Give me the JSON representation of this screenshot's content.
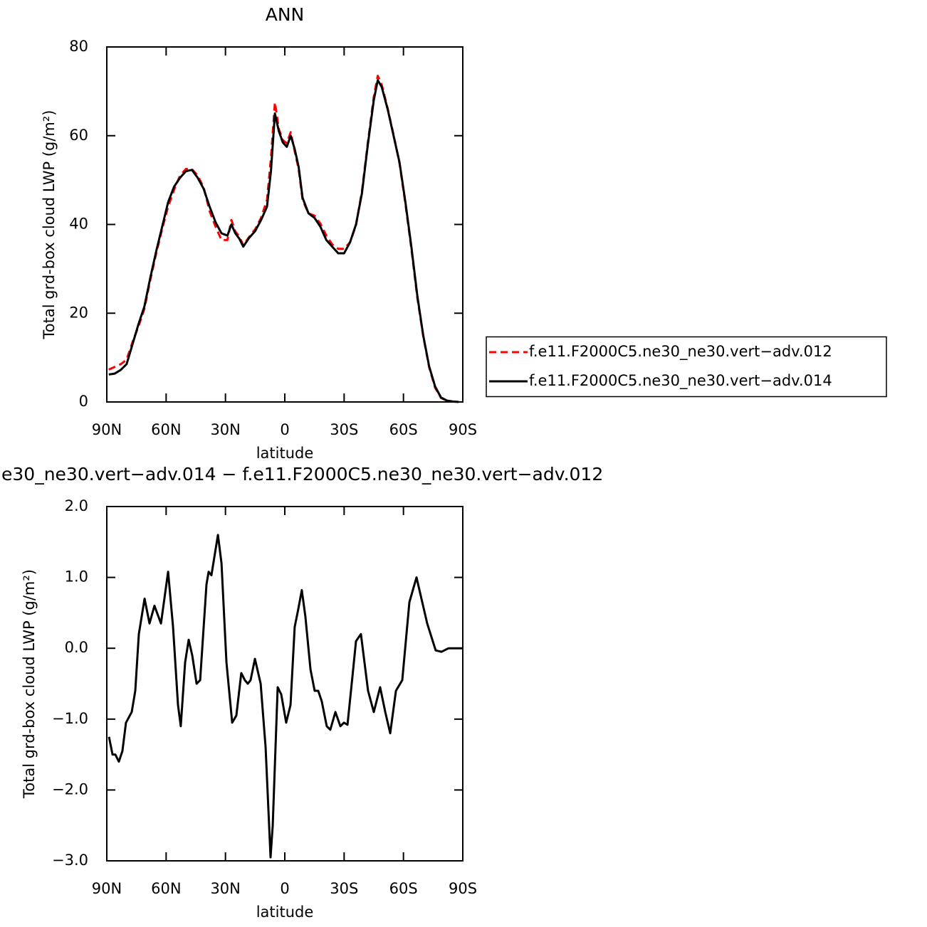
{
  "chart_data": [
    {
      "type": "line",
      "title": "ANN",
      "xlabel": "latitude",
      "ylabel": "Total grd-box cloud LWP (g/m²)",
      "xlim": [
        90,
        -90
      ],
      "ylim": [
        0,
        80
      ],
      "xticks": [
        {
          "value": 90,
          "label": "90N"
        },
        {
          "value": 60,
          "label": "60N"
        },
        {
          "value": 30,
          "label": "30N"
        },
        0,
        {
          "value": -30,
          "label": "30S"
        },
        {
          "value": -60,
          "label": "60S"
        },
        {
          "value": -90,
          "label": "90S"
        }
      ],
      "yticks": [
        0,
        20,
        40,
        60,
        80
      ],
      "legend": "right",
      "x": [
        89,
        86,
        83,
        80,
        77,
        74,
        71,
        68,
        65,
        62,
        59,
        56,
        53,
        50,
        47,
        44,
        41,
        38,
        35,
        32,
        29,
        27,
        25,
        23,
        21,
        18,
        15,
        12,
        9,
        7,
        5,
        3,
        1,
        -1,
        -3,
        -5,
        -7,
        -9,
        -12,
        -15,
        -18,
        -21,
        -24,
        -27,
        -30,
        -33,
        -36,
        -39,
        -42,
        -45,
        -47,
        -49,
        -52,
        -55,
        -58,
        -61,
        -64,
        -67,
        -70,
        -73,
        -76,
        -79,
        -82,
        -85,
        -88
      ],
      "series": [
        {
          "name": "f.e11.F2000C5.ne30_ne30.vert−adv.012",
          "color": "#ff0000",
          "line_style": "dashed",
          "values": [
            7.3,
            7.9,
            8.5,
            9.5,
            13.5,
            17,
            21,
            27.5,
            33.5,
            39,
            44,
            47.8,
            51,
            52.5,
            52.5,
            51,
            48.3,
            43,
            39.5,
            36.5,
            36.5,
            41,
            38.4,
            37.3,
            35.3,
            37.2,
            38.9,
            41.5,
            45.5,
            55,
            67.5,
            61.5,
            59,
            58.3,
            60.8,
            56.5,
            52.5,
            45.5,
            42.5,
            42,
            40.2,
            37.5,
            35.5,
            34.5,
            34.5,
            36,
            39.8,
            47.5,
            58.5,
            68.8,
            73.5,
            71.5,
            66.2,
            60.2,
            53.8,
            44.6,
            34.5,
            23.5,
            14.8,
            7.8,
            3.2,
            0.9,
            0.3,
            0.1,
            0
          ]
        },
        {
          "name": "f.e11.F2000C5.ne30_ne30.vert−adv.014",
          "color": "#000000",
          "line_style": "solid",
          "values": [
            6.2,
            6.4,
            7.2,
            8.5,
            13,
            17.5,
            21.5,
            28,
            34,
            39.5,
            45,
            48.5,
            50.5,
            52,
            52.3,
            50.5,
            48,
            44,
            40.5,
            38,
            37.5,
            40,
            38,
            36.8,
            35,
            37,
            38.5,
            41,
            44,
            52,
            65,
            61,
            58.5,
            57.5,
            60,
            57,
            53,
            46,
            42.5,
            41.5,
            39.5,
            36.5,
            35,
            33.5,
            33.5,
            36,
            40,
            47,
            58,
            68,
            72.5,
            71,
            66,
            60,
            54,
            45,
            35,
            24,
            15,
            8,
            3.5,
            1,
            0.3,
            0.1,
            0
          ]
        }
      ]
    },
    {
      "type": "line",
      "title": "e30_ne30.vert−adv.014 − f.e11.F2000C5.ne30_ne30.vert−adv.012",
      "xlabel": "latitude",
      "ylabel": "Total grd-box cloud LWP (g/m²)",
      "xlim": [
        90,
        -90
      ],
      "ylim": [
        -3,
        2
      ],
      "xticks": [
        {
          "value": 90,
          "label": "90N"
        },
        {
          "value": 60,
          "label": "60N"
        },
        {
          "value": 30,
          "label": "30N"
        },
        0,
        {
          "value": -30,
          "label": "30S"
        },
        {
          "value": -60,
          "label": "60S"
        },
        {
          "value": -90,
          "label": "90S"
        }
      ],
      "yticks": [
        {
          "value": 2,
          "label": "2.0"
        },
        {
          "value": 1,
          "label": "1.0"
        },
        {
          "value": 0,
          "label": "0.0"
        },
        {
          "value": -1,
          "label": "−1.0"
        },
        {
          "value": -2,
          "label": "−2.0"
        },
        {
          "value": -3,
          "label": "−3.0"
        }
      ],
      "x": [
        88.9,
        87.1,
        85.7,
        83.9,
        82.1,
        80.3,
        77.4,
        75.6,
        73.8,
        70.9,
        68.4,
        65.9,
        62.6,
        59,
        56.5,
        54,
        52.6,
        50.4,
        48.6,
        46.8,
        44.6,
        42.8,
        39.6,
        38.5,
        37.1,
        33.8,
        32,
        29.5,
        26.6,
        24.5,
        22,
        20.2,
        18.7,
        17.3,
        15.1,
        12.2,
        9.7,
        7.2,
        6.1,
        3.6,
        1.8,
        -0.7,
        -2.9,
        -5,
        -6.8,
        -8.6,
        -10.4,
        -13,
        -15.1,
        -16.9,
        -18.7,
        -21.2,
        -23,
        -25.6,
        -28.1,
        -29.9,
        -31.7,
        -34.2,
        -36,
        -38.5,
        -42.1,
        -45,
        -48.2,
        -50.8,
        -53.3,
        -56.2,
        -59.4,
        -63,
        -66.6,
        -72,
        -76.3,
        -79.2,
        -82.8,
        -90
      ],
      "series": [
        {
          "color": "#000000",
          "line_style": "solid",
          "values": [
            -1.25,
            -1.5,
            -1.5,
            -1.6,
            -1.45,
            -1.05,
            -0.9,
            -0.6,
            0.2,
            0.7,
            0.35,
            0.6,
            0.35,
            1.08,
            0.3,
            -0.8,
            -1.1,
            -0.2,
            0.12,
            -0.1,
            -0.5,
            -0.45,
            0.9,
            1.08,
            1.03,
            1.6,
            1.2,
            -0.2,
            -1.05,
            -0.95,
            -0.35,
            -0.45,
            -0.5,
            -0.45,
            -0.15,
            -0.5,
            -1.4,
            -2.95,
            -2.5,
            -0.55,
            -0.65,
            -1.05,
            -0.8,
            0.3,
            0.55,
            0.82,
            0.45,
            -0.3,
            -0.6,
            -0.6,
            -0.75,
            -1.1,
            -1.15,
            -0.9,
            -1.1,
            -1.05,
            -1.08,
            -0.4,
            0.1,
            0.2,
            -0.6,
            -0.9,
            -0.55,
            -0.9,
            -1.2,
            -0.6,
            -0.45,
            0.65,
            1.0,
            0.35,
            -0.03,
            -0.05,
            0,
            0
          ]
        }
      ]
    }
  ]
}
